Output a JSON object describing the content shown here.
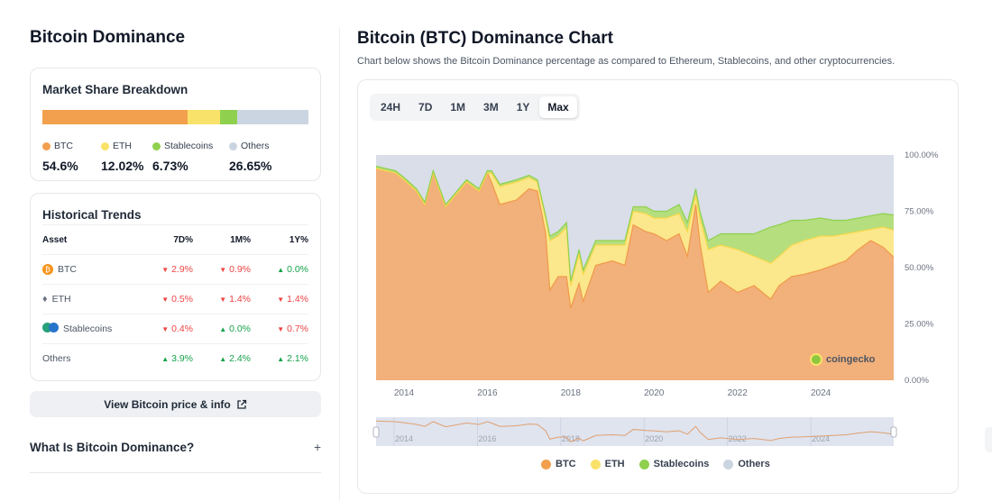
{
  "sidebar": {
    "title": "Bitcoin Dominance",
    "breakdown": {
      "title": "Market Share Breakdown",
      "items": [
        {
          "label": "BTC",
          "value": "54.6%",
          "share": 54.6,
          "color": "#f2a04e"
        },
        {
          "label": "ETH",
          "value": "12.02%",
          "share": 12.02,
          "color": "#f9e26a"
        },
        {
          "label": "Stablecoins",
          "value": "6.73%",
          "share": 6.73,
          "color": "#8fd14f"
        },
        {
          "label": "Others",
          "value": "26.65%",
          "share": 26.65,
          "color": "#cbd5e1"
        }
      ]
    },
    "trends": {
      "title": "Historical Trends",
      "headers": [
        "Asset",
        "7D%",
        "1M%",
        "1Y%"
      ],
      "rows": [
        {
          "asset": "BTC",
          "icon": "bitcoin-icon",
          "d7": "2.9%",
          "d7_dir": "down",
          "m1": "0.9%",
          "m1_dir": "down",
          "y1": "0.0%",
          "y1_dir": "up"
        },
        {
          "asset": "ETH",
          "icon": "ethereum-icon",
          "d7": "0.5%",
          "d7_dir": "down",
          "m1": "1.4%",
          "m1_dir": "down",
          "y1": "1.4%",
          "y1_dir": "down"
        },
        {
          "asset": "Stablecoins",
          "icon": "stablecoins-icon",
          "d7": "0.4%",
          "d7_dir": "down",
          "m1": "0.0%",
          "m1_dir": "up",
          "y1": "0.7%",
          "y1_dir": "down"
        },
        {
          "asset": "Others",
          "icon": "",
          "d7": "3.9%",
          "d7_dir": "up",
          "m1": "2.4%",
          "m1_dir": "up",
          "y1": "2.1%",
          "y1_dir": "up"
        }
      ]
    },
    "price_button": "View Bitcoin price & info",
    "faq": "What Is Bitcoin Dominance?"
  },
  "main": {
    "title": "Bitcoin (BTC) Dominance Chart",
    "subtitle": "Chart below shows the Bitcoin Dominance percentage as compared to Ethereum, Stablecoins, and other cryptocurrencies.",
    "tabs": [
      "24H",
      "7D",
      "1M",
      "3M",
      "1Y",
      "Max"
    ],
    "active_tab": "Max",
    "watermark": "coingecko"
  },
  "chart_data": {
    "type": "area",
    "stacked": true,
    "xlim": [
      2013.33,
      2025.75
    ],
    "ylim": [
      0,
      100
    ],
    "x_ticks": [
      "2014",
      "2016",
      "2018",
      "2020",
      "2022",
      "2024"
    ],
    "y_ticks": [
      "0.00%",
      "25.00%",
      "50.00%",
      "75.00%",
      "100.00%"
    ],
    "legend_position": "bottom",
    "x": [
      2013.33,
      2013.8,
      2014.0,
      2014.3,
      2014.5,
      2014.7,
      2015.0,
      2015.5,
      2015.8,
      2016.0,
      2016.1,
      2016.3,
      2016.7,
      2017.0,
      2017.2,
      2017.4,
      2017.5,
      2017.7,
      2017.9,
      2018.0,
      2018.2,
      2018.3,
      2018.6,
      2019.0,
      2019.3,
      2019.5,
      2019.8,
      2020.0,
      2020.3,
      2020.6,
      2020.8,
      2021.0,
      2021.1,
      2021.3,
      2021.6,
      2022.0,
      2022.4,
      2022.8,
      2023.0,
      2023.3,
      2023.6,
      2024.0,
      2024.3,
      2024.6,
      2024.9,
      2025.2,
      2025.5,
      2025.75
    ],
    "series": [
      {
        "name": "BTC",
        "color": "#f2b07a",
        "values": [
          94,
          92,
          89,
          84,
          78,
          92,
          77,
          88,
          84,
          92,
          88,
          78,
          80,
          85,
          84,
          65,
          40,
          46,
          46,
          32,
          43,
          35,
          51,
          53,
          51,
          69,
          66,
          65,
          62,
          65,
          55,
          78,
          61,
          39,
          44,
          39,
          42,
          36,
          42,
          46,
          47,
          49,
          51,
          53,
          58,
          62,
          59,
          54.6
        ]
      },
      {
        "name": "ETH",
        "color": "#fbe78c",
        "values": [
          0,
          0,
          0,
          0,
          0,
          0,
          0,
          0,
          0,
          0,
          4,
          8,
          8,
          5,
          4,
          7,
          22,
          18,
          22,
          10,
          13,
          12,
          9,
          7,
          9,
          6,
          8,
          7,
          10,
          9,
          11,
          4,
          11,
          19,
          16,
          19,
          13,
          16,
          13,
          14,
          15,
          15,
          13,
          12,
          8,
          5,
          9,
          12.02
        ]
      },
      {
        "name": "Stablecoins",
        "color": "#b5de7f",
        "values": [
          1,
          1,
          1,
          1,
          1,
          1,
          1,
          1,
          1,
          1,
          1,
          1,
          1,
          1,
          1,
          1,
          2,
          2,
          2,
          2,
          2,
          2,
          2,
          2,
          2,
          2,
          3,
          3,
          3,
          4,
          4,
          3,
          3,
          4,
          5,
          7,
          10,
          16,
          14,
          11,
          9,
          8,
          7,
          6,
          6,
          6,
          6,
          6.73
        ]
      },
      {
        "name": "Others",
        "color": "#d9dee8"
      }
    ]
  }
}
